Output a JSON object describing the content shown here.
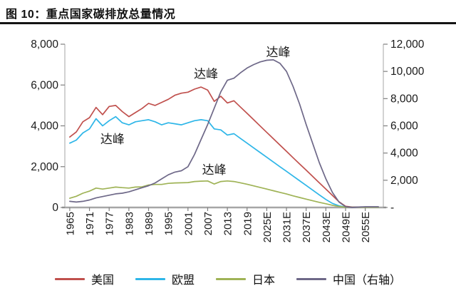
{
  "title": "图 10：重点国家碳排放总量情况",
  "chart_data": {
    "type": "line",
    "title": "重点国家碳排放总量情况",
    "figure_label": "图 10",
    "grid": false,
    "legend_position": "bottom",
    "x_years": [
      1965,
      1967,
      1969,
      1971,
      1973,
      1975,
      1977,
      1979,
      1981,
      1983,
      1985,
      1987,
      1989,
      1991,
      1993,
      1995,
      1997,
      1999,
      2001,
      2003,
      2005,
      2007,
      2009,
      2011,
      2013,
      2015,
      2017,
      2019,
      2021,
      2023,
      2025,
      2027,
      2029,
      2031,
      2033,
      2035,
      2037,
      2039,
      2041,
      2043,
      2045,
      2047,
      2049,
      2051,
      2053,
      2055,
      2057,
      2059
    ],
    "x_axis": {
      "tick_years": [
        1965,
        1971,
        1977,
        1983,
        1989,
        1995,
        2001,
        2007,
        2013,
        2019,
        2025,
        2031,
        2037,
        2043,
        2049,
        2055
      ],
      "labels": [
        "1965",
        "1971",
        "1977",
        "1983",
        "1989",
        "1995",
        "2001",
        "2007",
        "2013",
        "2019",
        "2025E",
        "2031E",
        "2037E",
        "2043E",
        "2049E",
        "2055E"
      ],
      "domain": [
        1963.5,
        2060.5
      ]
    },
    "left_axis": {
      "range": [
        0,
        8000
      ],
      "ticks": [
        0,
        2000,
        4000,
        6000,
        8000
      ],
      "labels": [
        "0",
        "2,000",
        "4,000",
        "6,000",
        "8,000"
      ]
    },
    "right_axis": {
      "range": [
        0,
        12000
      ],
      "ticks": [
        0,
        2000,
        4000,
        6000,
        8000,
        10000,
        12000
      ],
      "labels": [
        "-",
        "2,000",
        "4,000",
        "6,000",
        "8,000",
        "10,000",
        "12,000"
      ]
    },
    "series": [
      {
        "name": "美国",
        "axis": "left",
        "color": "#c0504d",
        "values": [
          3450,
          3700,
          4200,
          4400,
          4900,
          4550,
          4950,
          5000,
          4700,
          4450,
          4650,
          4850,
          5100,
          5000,
          5150,
          5300,
          5500,
          5600,
          5650,
          5800,
          5900,
          5750,
          5200,
          5450,
          5120,
          5230,
          4920,
          4610,
          4300,
          3990,
          3680,
          3370,
          3060,
          2750,
          2440,
          2130,
          1830,
          1520,
          1210,
          900,
          590,
          280,
          60,
          20,
          20,
          20,
          20,
          20
        ]
      },
      {
        "name": "欧盟",
        "axis": "left",
        "color": "#2eb6e8",
        "values": [
          3150,
          3300,
          3650,
          3850,
          4350,
          4000,
          4250,
          4450,
          4150,
          4050,
          4200,
          4250,
          4300,
          4200,
          4050,
          4150,
          4100,
          4050,
          4150,
          4250,
          4300,
          4250,
          3850,
          3800,
          3550,
          3615,
          3380,
          3150,
          2920,
          2690,
          2460,
          2230,
          2000,
          1770,
          1540,
          1310,
          1080,
          850,
          620,
          390,
          200,
          80,
          20,
          10,
          10,
          10,
          10,
          10
        ]
      },
      {
        "name": "日本",
        "axis": "left",
        "color": "#9fb356",
        "values": [
          450,
          550,
          700,
          800,
          950,
          900,
          950,
          1000,
          970,
          950,
          1000,
          1010,
          1100,
          1130,
          1130,
          1180,
          1200,
          1210,
          1220,
          1270,
          1290,
          1300,
          1150,
          1270,
          1300,
          1270,
          1210,
          1140,
          1060,
          980,
          900,
          820,
          740,
          660,
          570,
          490,
          410,
          330,
          250,
          180,
          110,
          50,
          15,
          10,
          10,
          10,
          10,
          10
        ]
      },
      {
        "name": "中国（右轴）",
        "axis": "right",
        "color": "#6e6888",
        "values": [
          450,
          400,
          450,
          550,
          700,
          800,
          900,
          1000,
          1050,
          1150,
          1300,
          1450,
          1600,
          1800,
          2100,
          2400,
          2600,
          2700,
          3000,
          3900,
          5000,
          6100,
          7300,
          8500,
          9350,
          9500,
          9900,
          10250,
          10500,
          10700,
          10820,
          10850,
          10600,
          10000,
          8900,
          7600,
          6100,
          4700,
          3300,
          2100,
          1100,
          400,
          60,
          0,
          30,
          50,
          50,
          50
        ]
      }
    ],
    "annotations": [
      {
        "text": "达峰",
        "year": 1978,
        "value": 3300,
        "axis": "left"
      },
      {
        "text": "达峰",
        "year": 2006.5,
        "value": 6500,
        "axis": "left"
      },
      {
        "text": "达峰",
        "year": 2028.5,
        "value": 11350,
        "axis": "right"
      },
      {
        "text": "达峰",
        "year": 2009,
        "value": 1800,
        "axis": "left"
      }
    ],
    "colors": {
      "axis_line": "#b3b3b3",
      "baseline": "#a6a6a6",
      "tick": "#808080",
      "text": "#1a1a1a"
    }
  }
}
